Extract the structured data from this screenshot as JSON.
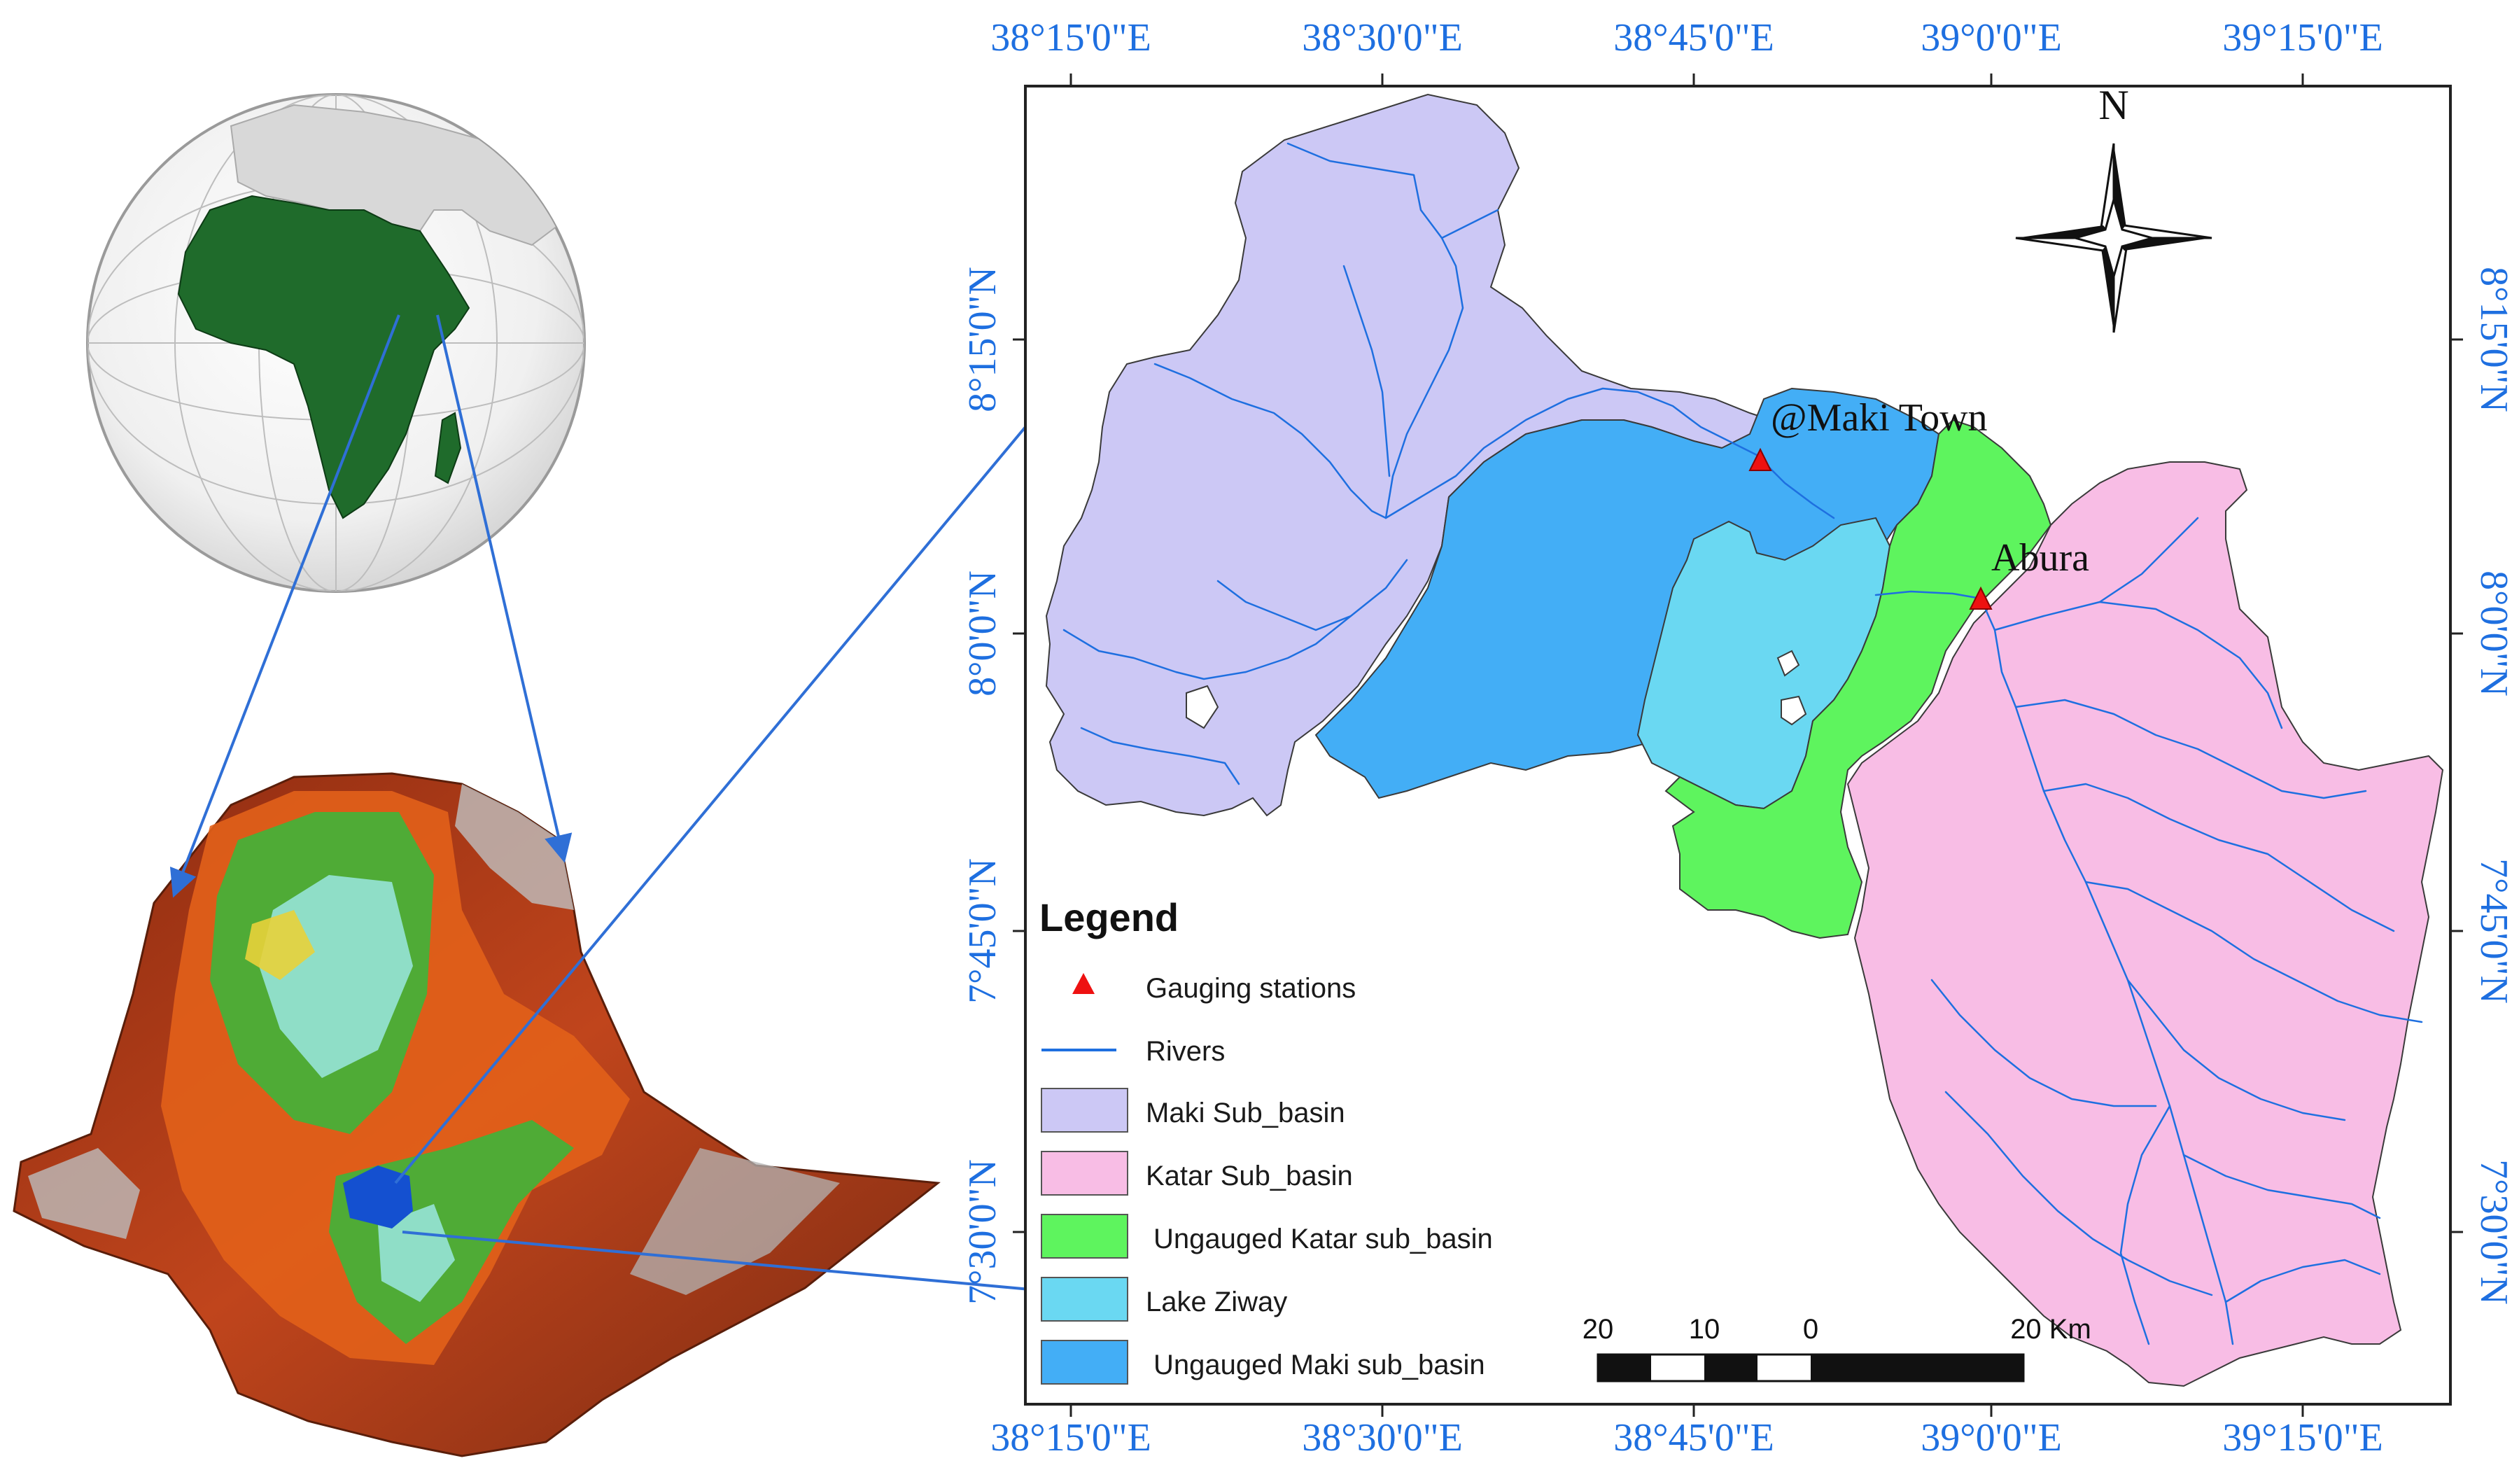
{
  "map": {
    "coords_top": [
      "38°15'0\"E",
      "38°30'0\"E",
      "38°45'0\"E",
      "39°0'0\"E",
      "39°15'0\"E"
    ],
    "coords_bottom": [
      "38°15'0\"E",
      "38°30'0\"E",
      "38°45'0\"E",
      "39°0'0\"E",
      "39°15'0\"E"
    ],
    "coords_left": [
      "8°15'0\"N",
      "8°0'0\"N",
      "7°45'0\"N",
      "7°30'0\"N"
    ],
    "coords_right": [
      "8°15'0\"N",
      "8°0'0\"N",
      "7°45'0\"N",
      "7°30'0\"N"
    ],
    "stations": [
      "@Maki Town",
      "Abura"
    ],
    "north_label": "N"
  },
  "legend": {
    "title": "Legend",
    "items": [
      {
        "label": "Gauging stations",
        "color": "#ee1111"
      },
      {
        "label": "Rivers",
        "color": "#1e6fe0"
      },
      {
        "label": "Maki Sub_basin",
        "color": "#ccc8f5"
      },
      {
        "label": "Katar Sub_basin",
        "color": "#f8bde5"
      },
      {
        "label": "Ungauged Katar sub_basin",
        "color": "#5ef45e"
      },
      {
        "label": "Lake Ziway",
        "color": "#6ad8f2"
      },
      {
        "label": "Ungauged Maki sub_basin",
        "color": "#43aef6"
      }
    ]
  },
  "scale_bar": {
    "ticks": [
      "20",
      "10",
      "0",
      "20 Km"
    ]
  },
  "colors": {
    "maki": "#ccc8f5",
    "katar": "#f8bde5",
    "ungauged_katar": "#5ef45e",
    "lake": "#6ad8f2",
    "ungauged_maki": "#43aef6",
    "river": "#1e6fe0",
    "africa": "#1f6b2b",
    "coord_text": "#1e6fe0"
  }
}
